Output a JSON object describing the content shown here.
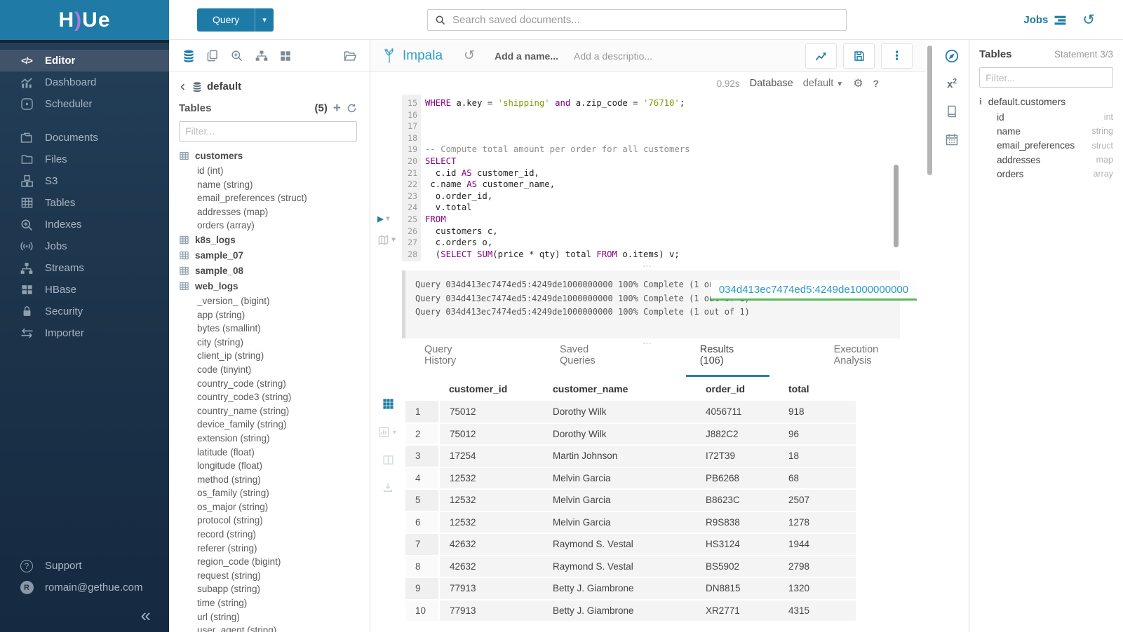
{
  "app": {
    "logo_left": "H",
    "logo_crescent": ")",
    "logo_right": "Ue"
  },
  "topbar": {
    "query_button": "Query",
    "search_placeholder": "Search saved documents...",
    "jobs_label": "Jobs"
  },
  "sidebar": {
    "items": [
      {
        "label": "Editor",
        "icon": "code-icon",
        "active": true
      },
      {
        "label": "Dashboard",
        "icon": "dashboard-icon",
        "active": false
      },
      {
        "label": "Scheduler",
        "icon": "scheduler-icon",
        "active": false
      },
      {
        "label": "Documents",
        "icon": "documents-icon",
        "active": false
      },
      {
        "label": "Files",
        "icon": "files-icon",
        "active": false
      },
      {
        "label": "S3",
        "icon": "s3-icon",
        "active": false
      },
      {
        "label": "Tables",
        "icon": "tables-icon",
        "active": false
      },
      {
        "label": "Indexes",
        "icon": "indexes-icon",
        "active": false
      },
      {
        "label": "Jobs",
        "icon": "jobs-icon",
        "active": false
      },
      {
        "label": "Streams",
        "icon": "streams-icon",
        "active": false
      },
      {
        "label": "HBase",
        "icon": "hbase-icon",
        "active": false
      },
      {
        "label": "Security",
        "icon": "security-icon",
        "active": false
      },
      {
        "label": "Importer",
        "icon": "importer-icon",
        "active": false
      }
    ],
    "footer": {
      "support_label": "Support",
      "user_initial": "R",
      "user_email": "romain@gethue.com",
      "collapse_glyph": "«"
    }
  },
  "left_panel": {
    "breadcrumb_db": "default",
    "tables_title": "Tables",
    "tables_count": "(5)",
    "filter_placeholder": "Filter...",
    "tree": [
      {
        "name": "customers",
        "columns": [
          "id (int)",
          "name (string)",
          "email_preferences (struct)",
          "addresses (map)",
          "orders (array)"
        ]
      },
      {
        "name": "k8s_logs",
        "columns": []
      },
      {
        "name": "sample_07",
        "columns": []
      },
      {
        "name": "sample_08",
        "columns": []
      },
      {
        "name": "web_logs",
        "columns": [
          "_version_ (bigint)",
          "app (string)",
          "bytes (smallint)",
          "city (string)",
          "client_ip (string)",
          "code (tinyint)",
          "country_code (string)",
          "country_code3 (string)",
          "country_name (string)",
          "device_family (string)",
          "extension (string)",
          "latitude (float)",
          "longitude (float)",
          "method (string)",
          "os_family (string)",
          "os_major (string)",
          "protocol (string)",
          "record (string)",
          "referer (string)",
          "region_code (bigint)",
          "request (string)",
          "subapp (string)",
          "time (string)",
          "url (string)",
          "user_agent (string)"
        ]
      }
    ]
  },
  "editor": {
    "engine": "Impala",
    "name_placeholder": "Add a name...",
    "desc_placeholder": "Add a descriptio...",
    "exec_time": "0.92s",
    "database_label": "Database",
    "database_value": "default",
    "code_lines": [
      {
        "n": "15",
        "tokens": [
          {
            "t": "WHERE",
            "c": "k"
          },
          {
            "t": " a.key = ",
            "c": "p"
          },
          {
            "t": "'shipping'",
            "c": "s"
          },
          {
            "t": " ",
            "c": "p"
          },
          {
            "t": "and",
            "c": "k"
          },
          {
            "t": " a.zip_code = ",
            "c": "p"
          },
          {
            "t": "'76710'",
            "c": "s"
          },
          {
            "t": ";",
            "c": "p"
          }
        ]
      },
      {
        "n": "16",
        "tokens": []
      },
      {
        "n": "17",
        "tokens": []
      },
      {
        "n": "18",
        "tokens": []
      },
      {
        "n": "19",
        "tokens": [
          {
            "t": "-- Compute total amount per order for all customers",
            "c": "c"
          }
        ]
      },
      {
        "n": "20",
        "tokens": [
          {
            "t": "SELECT",
            "c": "k"
          }
        ]
      },
      {
        "n": "21",
        "tokens": [
          {
            "t": "  c.id ",
            "c": "p"
          },
          {
            "t": "AS",
            "c": "k"
          },
          {
            "t": " customer_id,",
            "c": "p"
          }
        ]
      },
      {
        "n": "22",
        "tokens": [
          {
            "t": " c.name ",
            "c": "p"
          },
          {
            "t": "AS",
            "c": "k"
          },
          {
            "t": " customer_name,",
            "c": "p"
          }
        ]
      },
      {
        "n": "23",
        "tokens": [
          {
            "t": "  o.order_id,",
            "c": "p"
          }
        ]
      },
      {
        "n": "24",
        "tokens": [
          {
            "t": "  v.total",
            "c": "p"
          }
        ]
      },
      {
        "n": "25",
        "tokens": [
          {
            "t": "FROM",
            "c": "k"
          }
        ]
      },
      {
        "n": "26",
        "tokens": [
          {
            "t": "  customers c,",
            "c": "p"
          }
        ]
      },
      {
        "n": "27",
        "tokens": [
          {
            "t": "  c.orders o,",
            "c": "p"
          }
        ]
      },
      {
        "n": "28",
        "tokens": [
          {
            "t": "  (",
            "c": "p"
          },
          {
            "t": "SELECT",
            "c": "k"
          },
          {
            "t": " ",
            "c": "p"
          },
          {
            "t": "SUM",
            "c": "k"
          },
          {
            "t": "(price * qty) total ",
            "c": "p"
          },
          {
            "t": "FROM",
            "c": "k"
          },
          {
            "t": " o.items) v;",
            "c": "p"
          }
        ]
      }
    ]
  },
  "log": {
    "lines": [
      "Query 034d413ec7474ed5:4249de1000000000 100% Complete (1 out of 1)",
      "Query 034d413ec7474ed5:4249de1000000000 100% Complete (1 out of 1)",
      "Query 034d413ec7474ed5:4249de1000000000 100% Complete (1 out of 1)"
    ],
    "overlay_id": "034d413ec7474ed5:4249de1000000000"
  },
  "tabs": [
    {
      "label": "Query History",
      "active": false
    },
    {
      "label": "Saved Queries",
      "active": false
    },
    {
      "label": "Results (106)",
      "active": true
    },
    {
      "label": "Execution Analysis",
      "active": false
    }
  ],
  "results": {
    "columns": [
      "customer_id",
      "customer_name",
      "order_id",
      "total"
    ],
    "rows": [
      [
        "1",
        "75012",
        "Dorothy Wilk",
        "4056711",
        "918"
      ],
      [
        "2",
        "75012",
        "Dorothy Wilk",
        "J882C2",
        "96"
      ],
      [
        "3",
        "17254",
        "Martin Johnson",
        "I72T39",
        "18"
      ],
      [
        "4",
        "12532",
        "Melvin Garcia",
        "PB6268",
        "68"
      ],
      [
        "5",
        "12532",
        "Melvin Garcia",
        "B8623C",
        "2507"
      ],
      [
        "6",
        "12532",
        "Melvin Garcia",
        "R9S838",
        "1278"
      ],
      [
        "7",
        "42632",
        "Raymond S. Vestal",
        "HS3124",
        "1944"
      ],
      [
        "8",
        "42632",
        "Raymond S. Vestal",
        "BS5902",
        "2798"
      ],
      [
        "9",
        "77913",
        "Betty J. Giambrone",
        "DN8815",
        "1320"
      ],
      [
        "10",
        "77913",
        "Betty J. Giambrone",
        "XR2771",
        "4315"
      ]
    ]
  },
  "right_panel": {
    "title": "Tables",
    "statement": "Statement 3/3",
    "filter_placeholder": "Filter...",
    "table_name": "default.customers",
    "columns": [
      {
        "name": "id",
        "type": "int"
      },
      {
        "name": "name",
        "type": "string"
      },
      {
        "name": "email_preferences",
        "type": "struct"
      },
      {
        "name": "addresses",
        "type": "map"
      },
      {
        "name": "orders",
        "type": "array"
      }
    ]
  }
}
